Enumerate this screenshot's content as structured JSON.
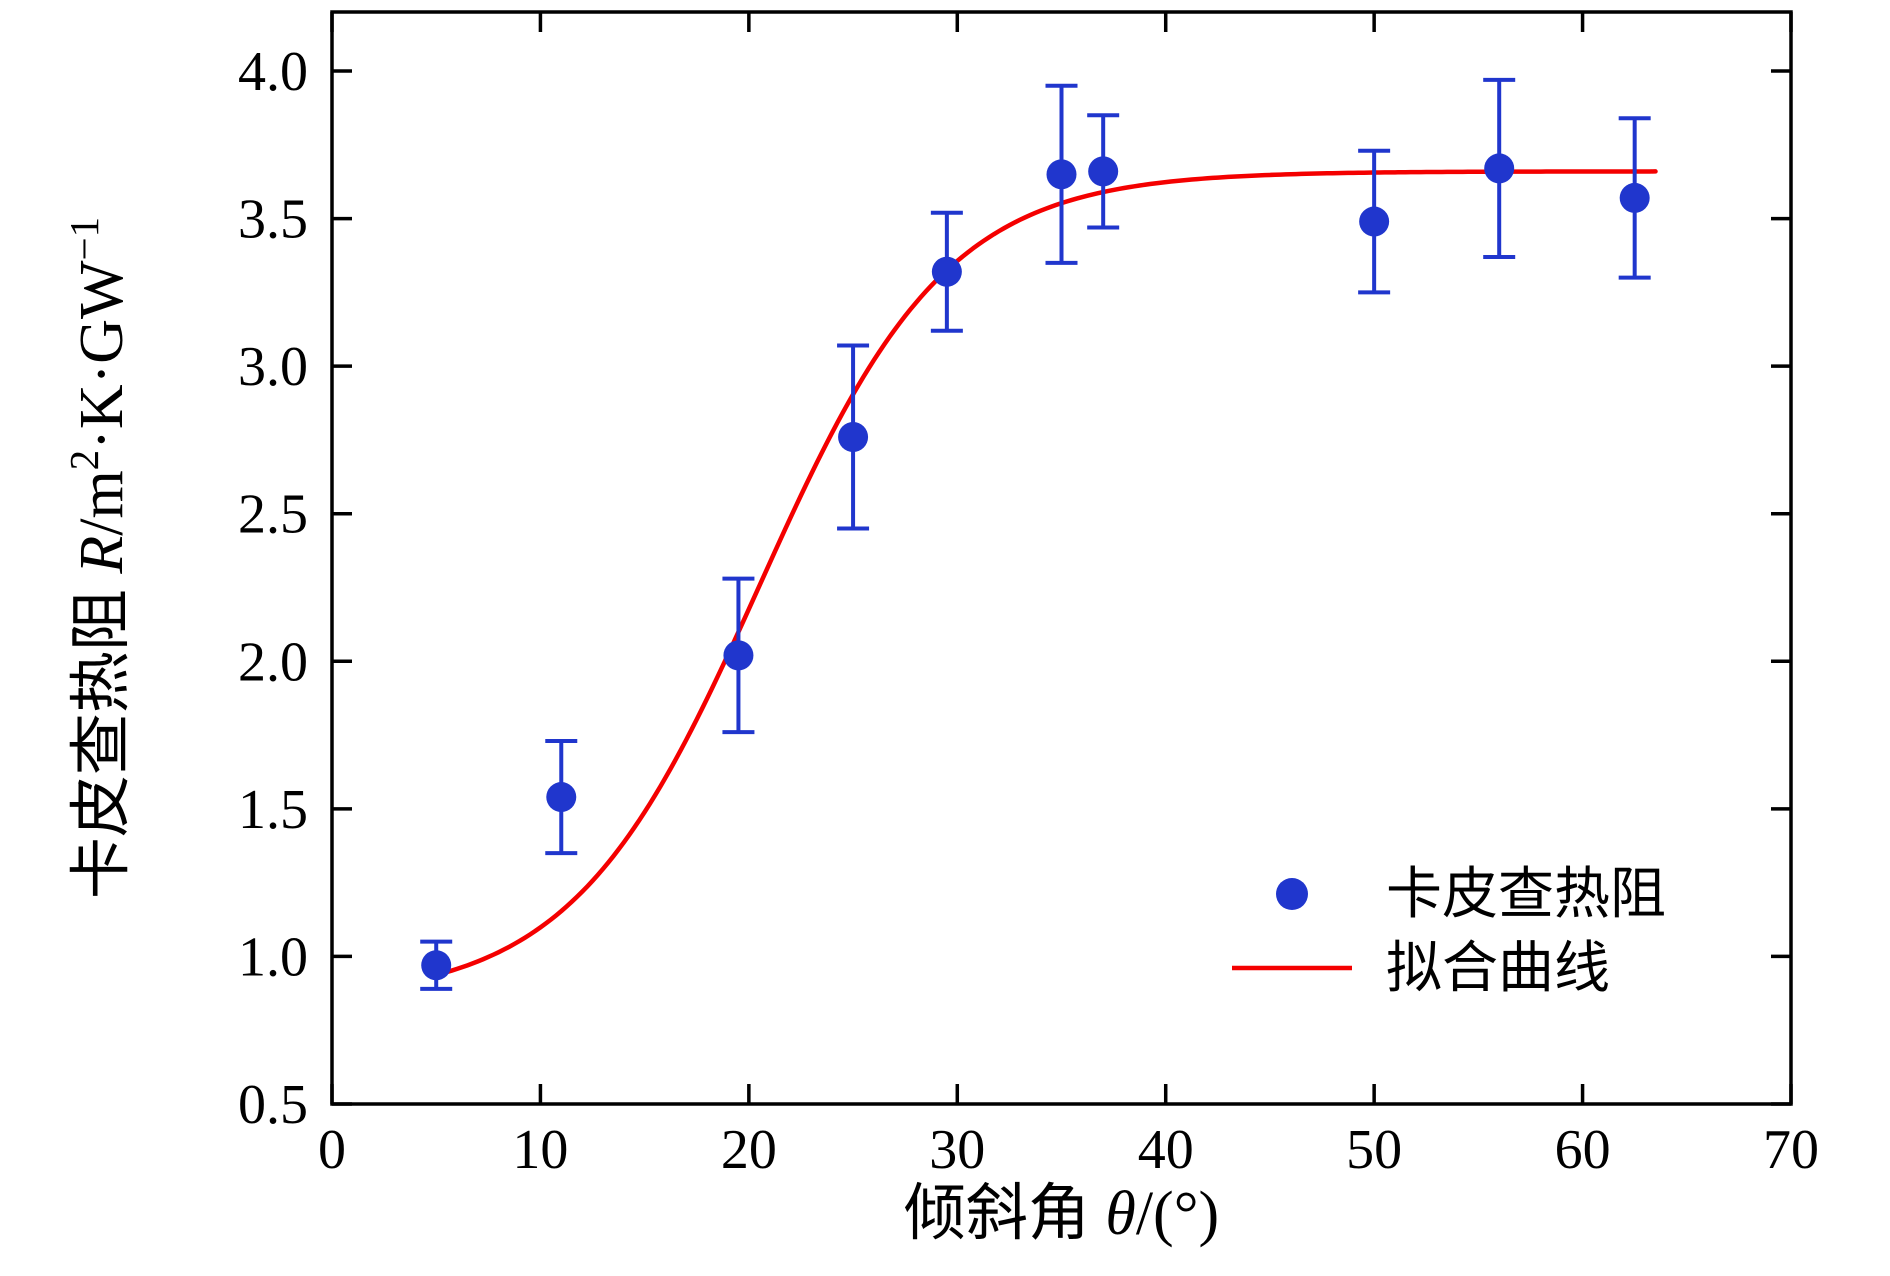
{
  "figure": {
    "background": "#ffffff",
    "frame_color": "#000000"
  },
  "chart_data": {
    "type": "scatter",
    "title": "",
    "xlabel_text": "倾斜角 θ/(°)",
    "ylabel_text": "卡皮查热阻 R/m²·K·GW⁻¹",
    "xlabel_parts": [
      {
        "t": "倾斜角 "
      },
      {
        "t": "θ",
        "i": true
      },
      {
        "t": "/(°)"
      }
    ],
    "ylabel_parts": [
      {
        "t": "卡皮查热阻 "
      },
      {
        "t": "R",
        "i": true
      },
      {
        "t": "/m"
      },
      {
        "t": "2",
        "sup": true
      },
      {
        "t": "·K·GW"
      },
      {
        "t": "−1",
        "sup": true
      }
    ],
    "xlim": [
      0,
      70
    ],
    "ylim": [
      0.5,
      4.2
    ],
    "xticks": [
      0,
      10,
      20,
      30,
      40,
      50,
      60,
      70
    ],
    "yticks": [
      0.5,
      1.0,
      1.5,
      2.0,
      2.5,
      3.0,
      3.5,
      4.0
    ],
    "grid": false,
    "series": [
      {
        "name": "卡皮查热阻",
        "type": "scatter_errorbar",
        "color": "#2036cd",
        "points": [
          {
            "x": 5,
            "y": 0.97,
            "err": 0.08
          },
          {
            "x": 11,
            "y": 1.54,
            "err": 0.19
          },
          {
            "x": 19.5,
            "y": 2.02,
            "err": 0.26
          },
          {
            "x": 25,
            "y": 2.76,
            "err": 0.31
          },
          {
            "x": 29.5,
            "y": 3.32,
            "err": 0.2
          },
          {
            "x": 35,
            "y": 3.65,
            "err": 0.3
          },
          {
            "x": 37,
            "y": 3.66,
            "err": 0.19
          },
          {
            "x": 50,
            "y": 3.49,
            "err": 0.24
          },
          {
            "x": 56,
            "y": 3.67,
            "err": 0.3
          },
          {
            "x": 62.5,
            "y": 3.57,
            "err": 0.27
          }
        ]
      },
      {
        "name": "拟合曲线",
        "type": "line_fit",
        "color": "#f40000",
        "model": "logistic",
        "params": {
          "A1": 0.85,
          "A2": 3.66,
          "x0": 20.5,
          "dx": 4.5
        },
        "x_start": 5,
        "x_end": 63.5
      }
    ],
    "legend": {
      "position": "inside-right-lower",
      "entries": [
        {
          "label": "卡皮查热阻",
          "type": "marker"
        },
        {
          "label": "拟合曲线",
          "type": "line"
        }
      ]
    }
  }
}
